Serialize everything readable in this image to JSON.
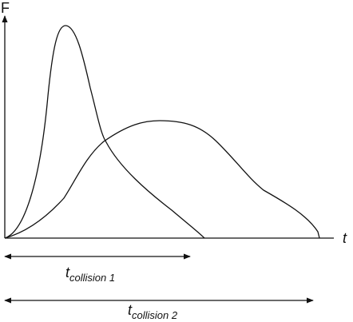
{
  "axes": {
    "y_label": "F",
    "x_label": "t"
  },
  "intervals": [
    {
      "symbol": "t",
      "subscript": "collision 1"
    },
    {
      "symbol": "t",
      "subscript": "collision 2"
    }
  ],
  "colors": {
    "stroke": "#111111",
    "background": "#ffffff"
  }
}
